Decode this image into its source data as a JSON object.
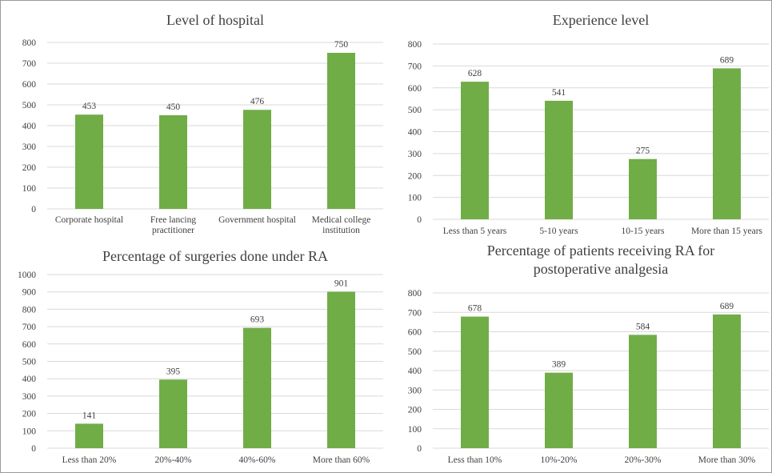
{
  "chart_data": [
    {
      "type": "bar",
      "title": [
        "Level of hospital"
      ],
      "categories": [
        [
          "Corporate hospital"
        ],
        [
          "Free lancing",
          "practitioner"
        ],
        [
          "Government hospital"
        ],
        [
          "Medical college",
          "institution"
        ]
      ],
      "values": [
        453,
        450,
        476,
        750
      ],
      "ylim": [
        0,
        800
      ],
      "yticks": [
        0,
        100,
        200,
        300,
        400,
        500,
        600,
        700,
        800
      ],
      "bar_color": "#70AD47",
      "grid": true
    },
    {
      "type": "bar",
      "title": [
        "Experience level"
      ],
      "categories": [
        [
          "Less than 5 years"
        ],
        [
          "5-10 years"
        ],
        [
          "10-15 years"
        ],
        [
          "More than 15 years"
        ]
      ],
      "values": [
        628,
        541,
        275,
        689
      ],
      "ylim": [
        0,
        800
      ],
      "yticks": [
        0,
        100,
        200,
        300,
        400,
        500,
        600,
        700,
        800
      ],
      "bar_color": "#70AD47",
      "grid": true
    },
    {
      "type": "bar",
      "title": [
        "Percentage of surgeries done under RA"
      ],
      "categories": [
        [
          "Less than 20%"
        ],
        [
          "20%-40%"
        ],
        [
          "40%-60%"
        ],
        [
          "More than 60%"
        ]
      ],
      "values": [
        141,
        395,
        693,
        901
      ],
      "ylim": [
        0,
        1000
      ],
      "yticks": [
        0,
        100,
        200,
        300,
        400,
        500,
        600,
        700,
        800,
        900,
        1000
      ],
      "bar_color": "#70AD47",
      "grid": true
    },
    {
      "type": "bar",
      "title": [
        "Percentage of patients receiving RA for",
        "postoperative analgesia"
      ],
      "categories": [
        [
          "Less than 10%"
        ],
        [
          "10%-20%"
        ],
        [
          "20%-30%"
        ],
        [
          "More than 30%"
        ]
      ],
      "values": [
        678,
        389,
        584,
        689
      ],
      "ylim": [
        0,
        800
      ],
      "yticks": [
        0,
        100,
        200,
        300,
        400,
        500,
        600,
        700,
        800
      ],
      "bar_color": "#70AD47",
      "grid": true
    }
  ],
  "colors": {
    "bar": "#70AD47",
    "grid": "#D9D9D9",
    "text": "#404040",
    "border": "#9A9A9A"
  }
}
